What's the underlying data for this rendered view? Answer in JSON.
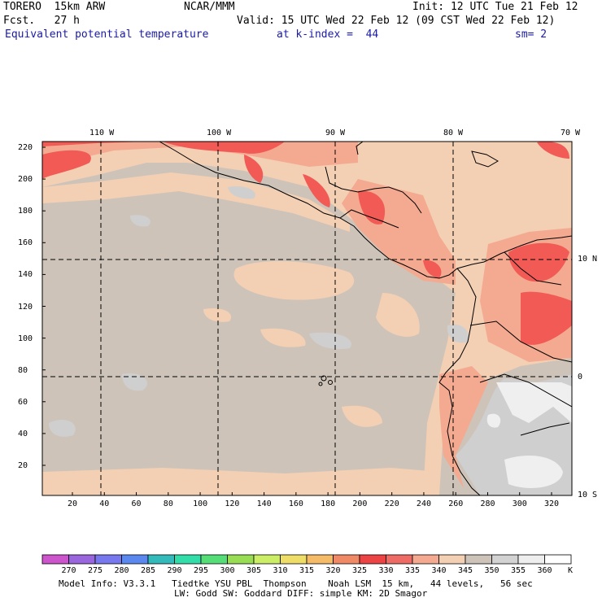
{
  "header": {
    "model": "TORERO  15km ARW",
    "org": "NCAR/MMM",
    "init": "Init: 12 UTC Tue 21 Feb 12",
    "fcst": "Fcst.   27 h",
    "valid": "Valid: 15 UTC Wed 22 Feb 12 (09 CST Wed 22 Feb 12)",
    "field": "Equivalent potential temperature",
    "level": "at k-index =  44",
    "smooth": "sm= 2"
  },
  "map": {
    "lon_labels": [
      "110 W",
      "100 W",
      "90 W",
      "80 W",
      "70 W"
    ],
    "lat_labels": [
      "10 N",
      "0",
      "10 S"
    ],
    "y_ticks": [
      "220",
      "200",
      "180",
      "160",
      "140",
      "120",
      "100",
      "80",
      "60",
      "40",
      "20"
    ],
    "x_ticks": [
      "20",
      "40",
      "60",
      "80",
      "100",
      "120",
      "140",
      "160",
      "180",
      "200",
      "220",
      "240",
      "260",
      "280",
      "300",
      "320"
    ],
    "colors": {
      "base": "#cdc3b9",
      "peach": "#f3cfb4",
      "salmon": "#f4aa90",
      "red": "#f25a56",
      "grey": "#cfcfcf",
      "white": "#efefef"
    }
  },
  "colorbar": {
    "labels": [
      "270",
      "275",
      "280",
      "285",
      "290",
      "295",
      "300",
      "305",
      "310",
      "315",
      "320",
      "325",
      "330",
      "335",
      "340",
      "345",
      "350",
      "355",
      "360"
    ],
    "unit": "K",
    "colors": [
      "#cc55cc",
      "#9966dd",
      "#7777ee",
      "#5a88ee",
      "#33bbbb",
      "#33ddaa",
      "#55dd77",
      "#99dd55",
      "#ccee66",
      "#eedd66",
      "#f6bb66",
      "#f08a66",
      "#ec4444",
      "#ee6b66",
      "#f4aa90",
      "#f3cfb4",
      "#cdc3b9",
      "#d2d2d2",
      "#eeeeee",
      "#ffffff"
    ]
  },
  "footer": {
    "line1": "Model Info: V3.3.1   Tiedtke YSU PBL  Thompson    Noah LSM  15 km,   44 levels,   56 sec",
    "line2": "LW: Godd SW: Goddard DIFF: simple KM: 2D Smagor"
  }
}
